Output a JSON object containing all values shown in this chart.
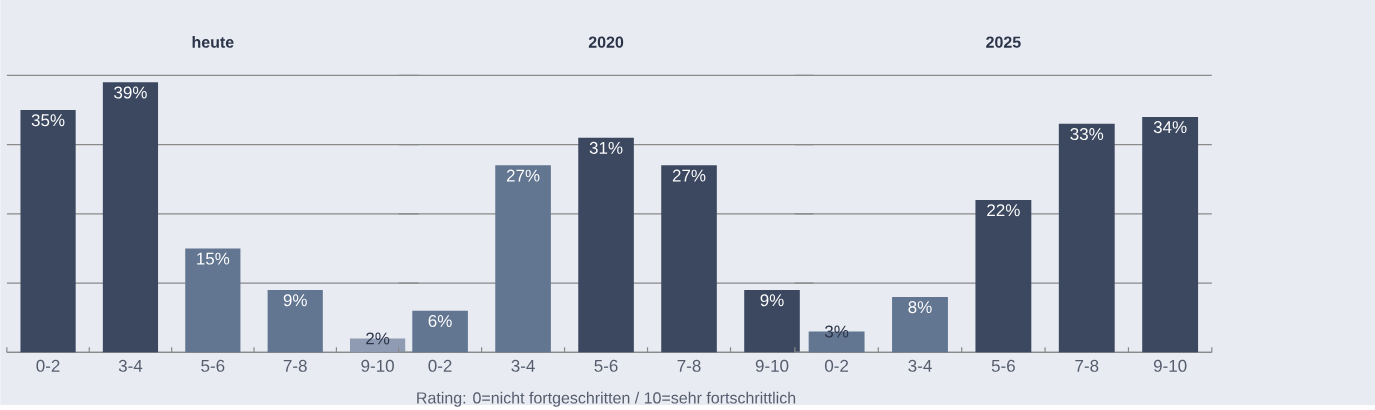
{
  "chart_data": [
    {
      "type": "bar",
      "title": "heute",
      "categories": [
        "0-2",
        "3-4",
        "5-6",
        "7-8",
        "9-10"
      ],
      "values": [
        35,
        39,
        15,
        9,
        2
      ],
      "colors": [
        "#3c4860",
        "#3c4860",
        "#627591",
        "#627591",
        "#8f9bb3"
      ],
      "value_labels": [
        "35%",
        "39%",
        "15%",
        "9%",
        "2%"
      ],
      "ylim": [
        0,
        40
      ],
      "yticks": [
        {
          "value": 0,
          "label": null
        },
        {
          "value": 10,
          "label": null
        },
        {
          "value": 20,
          "label": null
        },
        {
          "value": 30,
          "label": null
        },
        {
          "value": 40,
          "label": null
        }
      ],
      "grid": "y",
      "tick_labels": "x"
    },
    {
      "type": "bar",
      "title": "2020",
      "categories": [
        "0-2",
        "3-4",
        "5-6",
        "7-8",
        "9-10"
      ],
      "values": [
        6,
        27,
        31,
        27,
        9
      ],
      "colors": [
        "#627591",
        "#627591",
        "#3c4860",
        "#3c4860",
        "#3c4860"
      ],
      "value_labels": [
        "6%",
        "27%",
        "31%",
        "27%",
        "9%"
      ],
      "ylim": [
        0,
        40
      ],
      "yticks": [
        {
          "value": 0,
          "label": null
        },
        {
          "value": 10,
          "label": null
        },
        {
          "value": 20,
          "label": null
        },
        {
          "value": 30,
          "label": null
        },
        {
          "value": 40,
          "label": null
        }
      ],
      "grid": "y",
      "tick_labels": "x",
      "annotations": [
        "Rating: 0=nicht fortgeschritten / 10=sehr fortschrittlich"
      ]
    },
    {
      "type": "bar",
      "title": "2025",
      "categories": [
        "0-2",
        "3-4",
        "5-6",
        "7-8",
        "9-10"
      ],
      "values": [
        3,
        8,
        22,
        33,
        34
      ],
      "colors": [
        "#627591",
        "#627591",
        "#3c4860",
        "#3c4860",
        "#3c4860"
      ],
      "value_labels": [
        "3%",
        "8%",
        "22%",
        "33%",
        "34%"
      ],
      "ylim": [
        0,
        40
      ],
      "yticks": [
        {
          "value": 0,
          "label": null
        },
        {
          "value": 10,
          "label": null
        },
        {
          "value": 20,
          "label": null
        },
        {
          "value": 30,
          "label": null
        },
        {
          "value": 40,
          "label": null
        }
      ],
      "grid": "y",
      "tick_labels": "x"
    }
  ]
}
